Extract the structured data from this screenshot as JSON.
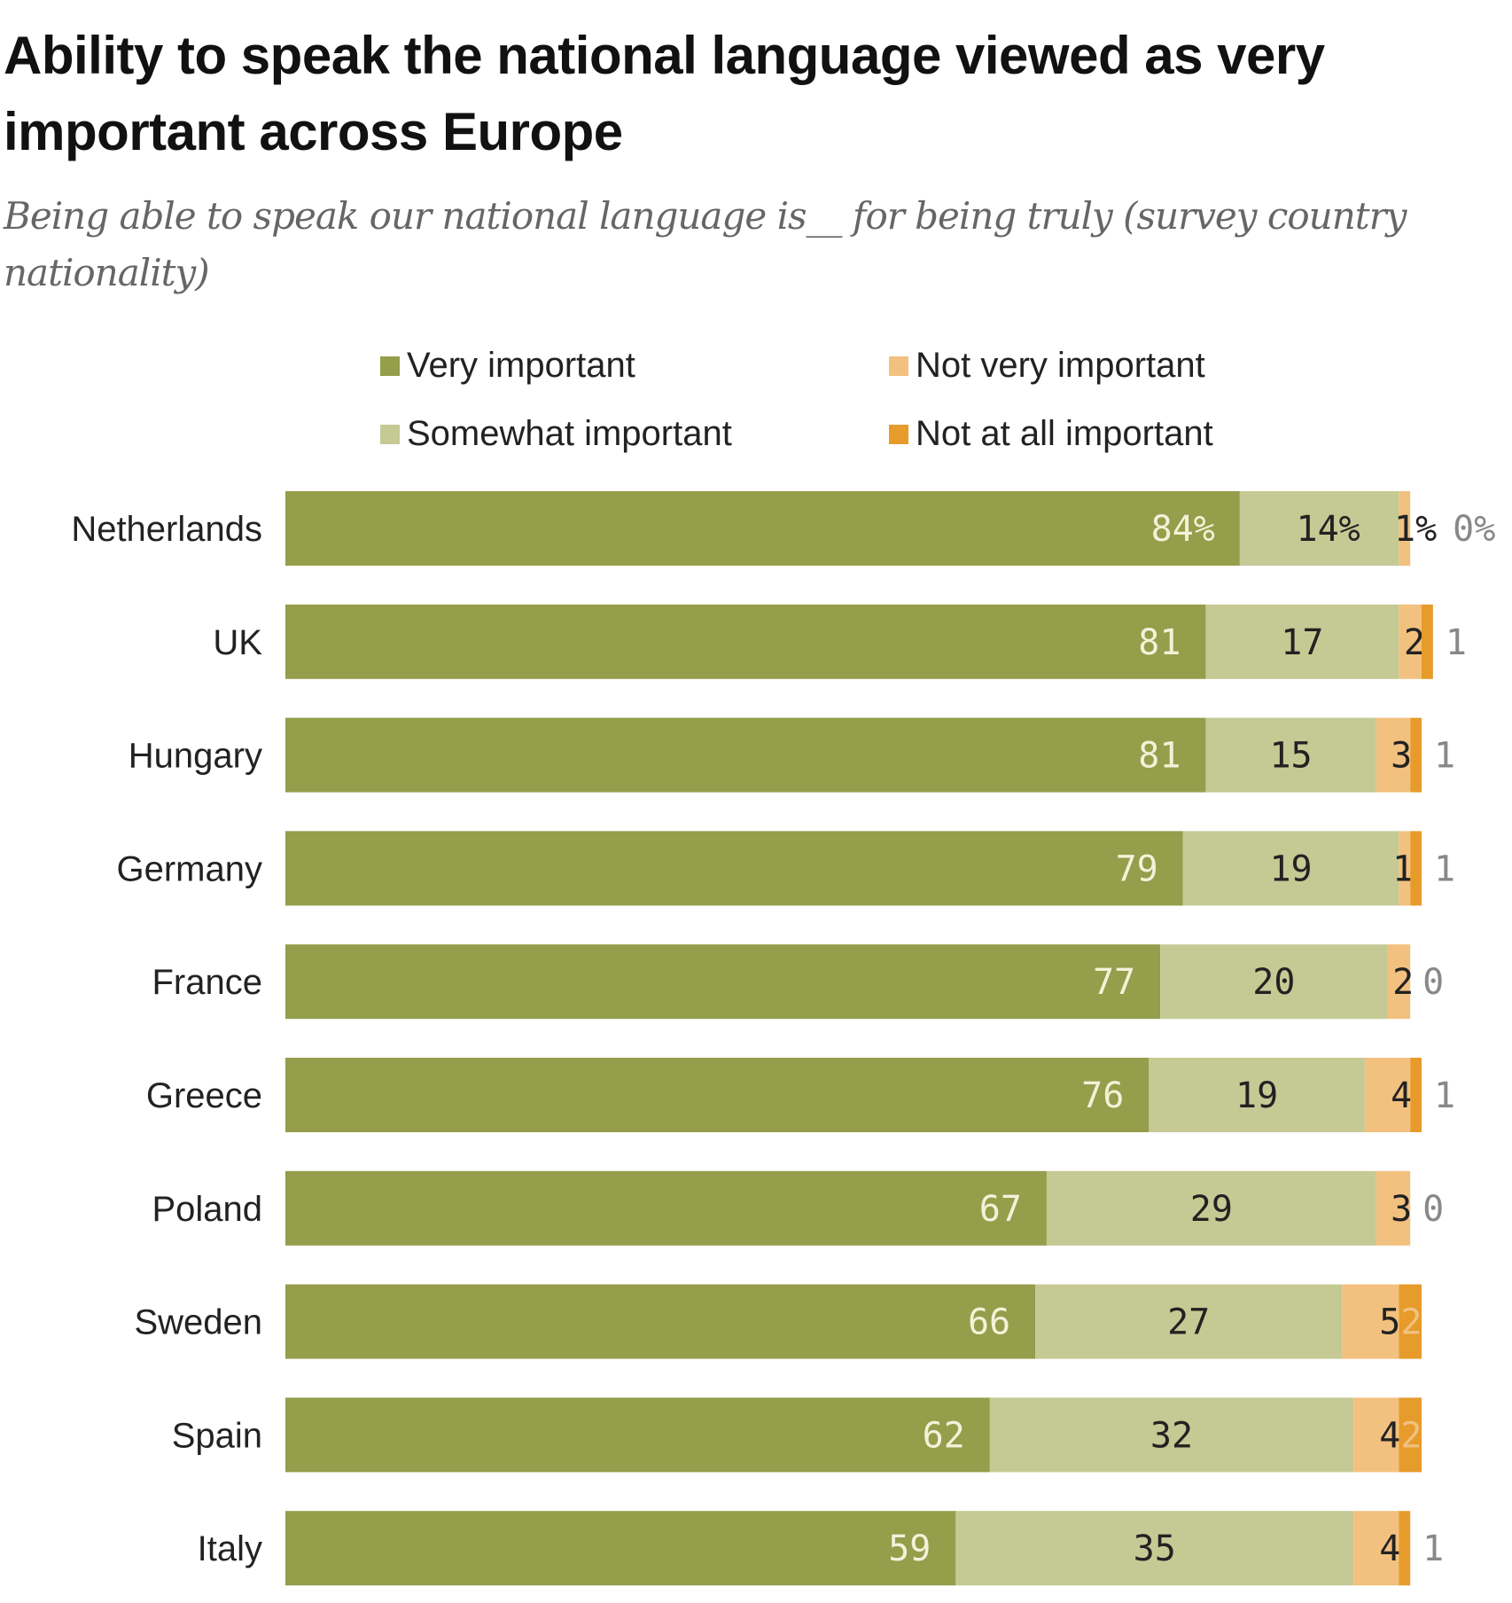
{
  "title": "Ability to speak the national language viewed as very important across Europe",
  "subtitle": "Being able to speak our national language is__ for being truly (survey country nationality)",
  "chart_data": {
    "type": "bar",
    "orientation": "horizontal",
    "stacked": true,
    "title": "Ability to speak the national language viewed as very important across Europe",
    "subtitle": "Being able to speak our national language is__ for being truly (survey country nationality)",
    "categories": [
      "Netherlands",
      "UK",
      "Hungary",
      "Germany",
      "France",
      "Greece",
      "Poland",
      "Sweden",
      "Spain",
      "Italy"
    ],
    "series": [
      {
        "name": "Very important",
        "color": "#949e4b",
        "values": [
          84,
          81,
          81,
          79,
          77,
          76,
          67,
          66,
          62,
          59
        ]
      },
      {
        "name": "Somewhat important",
        "color": "#c5c994",
        "values": [
          14,
          17,
          15,
          19,
          20,
          19,
          29,
          27,
          32,
          35
        ]
      },
      {
        "name": "Not very important",
        "color": "#f2c17f",
        "values": [
          1,
          2,
          3,
          1,
          2,
          4,
          3,
          5,
          4,
          4
        ]
      },
      {
        "name": "Not at all important",
        "color": "#e69b2a",
        "values": [
          0,
          1,
          1,
          1,
          0,
          1,
          0,
          2,
          2,
          1
        ]
      }
    ],
    "first_row_suffix": "%",
    "xlim": [
      0,
      100
    ],
    "grid": false,
    "legend_position": "top"
  }
}
